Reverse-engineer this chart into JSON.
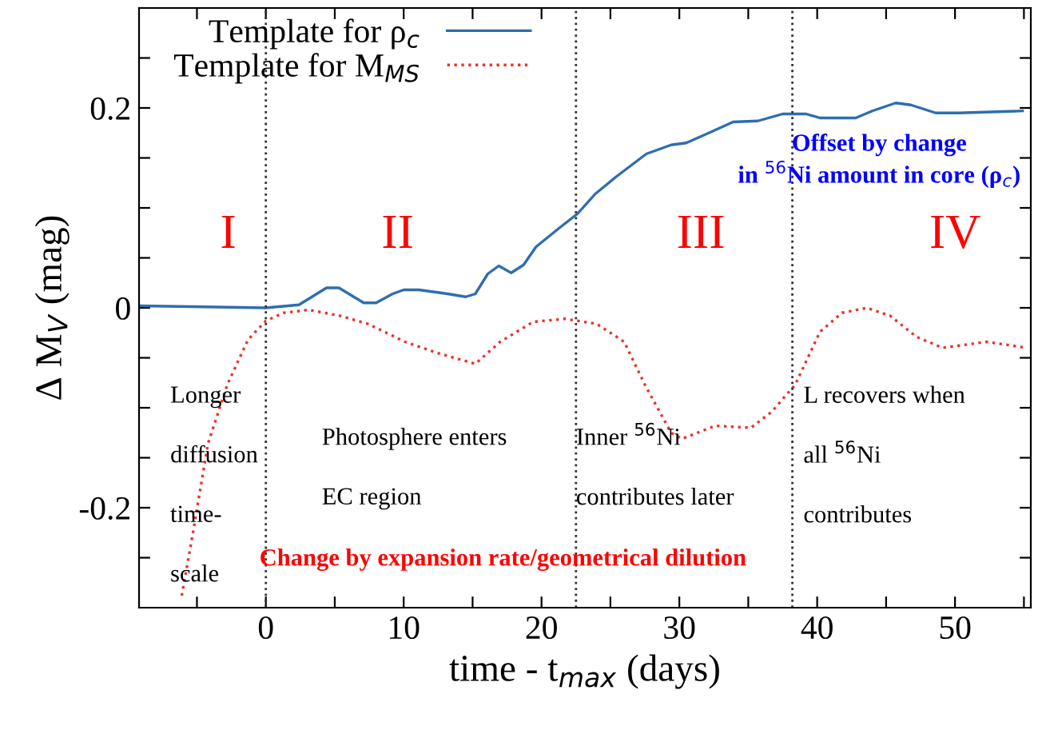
{
  "chart_data": {
    "type": "line",
    "xlabel": "time - t$_{max}$ (days)",
    "ylabel": "Δ M$_{V}$ (mag)",
    "xlim": [
      -9.2,
      55.5
    ],
    "ylim": [
      -0.3,
      0.3
    ],
    "xticks": [
      {
        "value": -5,
        "label": null
      },
      0,
      {
        "value": 5,
        "label": null
      },
      10,
      {
        "value": 15,
        "label": null
      },
      20,
      {
        "value": 25,
        "label": null
      },
      30,
      {
        "value": 35,
        "label": null
      },
      40,
      {
        "value": 45,
        "label": null
      },
      50,
      {
        "value": 55,
        "label": null
      }
    ],
    "yticks": [
      {
        "value": -0.25,
        "label": null
      },
      -0.2,
      {
        "value": -0.15,
        "label": null
      },
      {
        "value": -0.1,
        "label": null
      },
      {
        "value": -0.05,
        "label": null
      },
      0,
      {
        "value": 0.05,
        "label": null
      },
      {
        "value": 0.1,
        "label": null
      },
      {
        "value": 0.15,
        "label": null
      },
      0.2,
      {
        "value": 0.25,
        "label": null
      }
    ],
    "legend": "top left",
    "grid": false,
    "series": [
      {
        "name": "Template for ρ$_{c}$",
        "color": "#2f6db0",
        "line_style": "solid",
        "x": [
          -9.2,
          0,
          2.4,
          4.4,
          5.3,
          7.1,
          8,
          9.2,
          10,
          11.1,
          13.2,
          14.5,
          15.2,
          16.1,
          16.9,
          17.8,
          18.7,
          19.6,
          21.3,
          22.6,
          23.9,
          25.4,
          27.6,
          29.4,
          30.5,
          32.3,
          33.9,
          35.7,
          37.5,
          39.2,
          40.2,
          42.8,
          44,
          45.7,
          46.8,
          48.6,
          50.3,
          54.9
        ],
        "values": [
          0.002,
          0.0,
          0.003,
          0.02,
          0.02,
          0.005,
          0.005,
          0.014,
          0.018,
          0.018,
          0.014,
          0.011,
          0.014,
          0.034,
          0.042,
          0.035,
          0.043,
          0.061,
          0.08,
          0.094,
          0.114,
          0.131,
          0.154,
          0.163,
          0.165,
          0.176,
          0.186,
          0.187,
          0.194,
          0.194,
          0.19,
          0.19,
          0.197,
          0.205,
          0.203,
          0.195,
          0.195,
          0.197
        ]
      },
      {
        "name": "Template for M$_{MS}$",
        "color": "#e8332a",
        "line_style": "dotted",
        "x": [
          -6.1,
          -5.3,
          -4.2,
          -2.8,
          -1.3,
          0,
          1.3,
          3.1,
          5.4,
          7.4,
          10.1,
          12.4,
          15.2,
          17,
          19.4,
          21.7,
          24,
          26,
          27.5,
          29.4,
          30.2,
          32.6,
          35.2,
          36.7,
          38.4,
          40.2,
          41.8,
          43.6,
          45.3,
          47.2,
          49.1,
          52.3,
          55.2
        ],
        "values": [
          -0.288,
          -0.226,
          -0.136,
          -0.077,
          -0.032,
          -0.013,
          -0.005,
          -0.002,
          -0.008,
          -0.016,
          -0.034,
          -0.045,
          -0.056,
          -0.034,
          -0.014,
          -0.011,
          -0.016,
          -0.034,
          -0.077,
          -0.125,
          -0.131,
          -0.118,
          -0.12,
          -0.104,
          -0.077,
          -0.024,
          -0.005,
          0.0,
          -0.008,
          -0.029,
          -0.04,
          -0.034,
          -0.04
        ]
      }
    ],
    "ref_lines": [
      {
        "axis": "x",
        "value": 0,
        "color": "#333333",
        "line_style": "dotted"
      },
      {
        "axis": "x",
        "value": 22.5,
        "color": "#333333",
        "line_style": "dotted"
      },
      {
        "axis": "x",
        "value": 38.2,
        "color": "#333333",
        "line_style": "dotted"
      }
    ],
    "annotations": [
      "I",
      "II",
      "III",
      "IV",
      "Longer\n\ndiffusion\n\ntime-\n\nscale",
      "Photosphere enters\n\nEC region",
      "Inner $^{56}$Ni\n\ncontributes later",
      "L recovers when\n\nall $^{56}$Ni\n\ncontributes",
      "Change by expansion rate/geometrical dilution",
      "Offset by change\nin $^{56}$Ni amount in core (ρ$_{c}$)"
    ]
  }
}
